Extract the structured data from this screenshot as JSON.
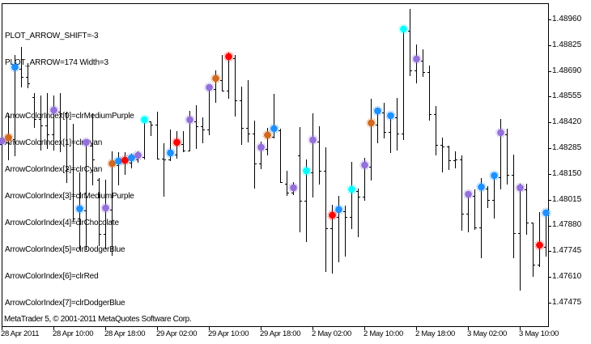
{
  "comment": {
    "shift": "PLOT_ARROW_SHIFT=-3",
    "arrow": "PLOT_ARROW=174 Width=3",
    "color_indices": [
      "ArrowColorIndex[0]=clrMediumPurple",
      "ArrowColorIndex[1]=clrCyan",
      "ArrowColorIndex[2]=clrCyan",
      "ArrowColorIndex[3]=clrMediumPurple",
      "ArrowColorIndex[4]=clrChocolate",
      "ArrowColorIndex[5]=clrDodgerBlue",
      "ArrowColorIndex[6]=clrRed",
      "ArrowColorIndex[7]=clrDodgerBlue"
    ]
  },
  "copyright": "MetaTrader 5, © 2001-2011 MetaQuotes Software Corp.",
  "axes": {
    "price_labels": [
      "1.48960",
      "1.48825",
      "1.48690",
      "1.48555",
      "1.48420",
      "1.48285",
      "1.48150",
      "1.48015",
      "1.47880",
      "1.47745",
      "1.47610",
      "1.47475"
    ],
    "time_labels": [
      "28 Apr 2011",
      "28 Apr 10:00",
      "28 Apr 18:00",
      "29 Apr 02:00",
      "29 Apr 10:00",
      "29 Apr 18:00",
      "2 May 02:00",
      "2 May 10:00",
      "2 May 18:00",
      "3 May 02:00",
      "3 May 10:00"
    ]
  },
  "colors": {
    "background": "#FFFFFF",
    "bars": "#000000",
    "MediumPurple": "#9370DB",
    "Cyan": "#00FFFF",
    "Chocolate": "#D2691E",
    "DodgerBlue": "#1E90FF",
    "Red": "#FF0000"
  },
  "chart_data": {
    "type": "bar",
    "bar_style": "ohlc",
    "title": "",
    "xlabel": "",
    "ylabel": "",
    "grid": false,
    "legend": null,
    "x_tick_labels": [
      "28 Apr 2011",
      "28 Apr 10:00",
      "28 Apr 18:00",
      "29 Apr 02:00",
      "29 Apr 10:00",
      "29 Apr 18:00",
      "2 May 02:00",
      "2 May 10:00",
      "2 May 18:00",
      "3 May 02:00",
      "3 May 10:00"
    ],
    "x_tick_bar_index": [
      0,
      8,
      16,
      24,
      32,
      40,
      48,
      56,
      64,
      72,
      80
    ],
    "y_ticks": [
      1.4896,
      1.48825,
      1.4869,
      1.48555,
      1.4842,
      1.48285,
      1.4815,
      1.48015,
      1.4788,
      1.47745,
      1.4761,
      1.47475
    ],
    "ylim": [
      1.4735,
      1.4905
    ],
    "y_axis_position": "right",
    "annotations": [
      "PLOT_ARROW_SHIFT=-3",
      "PLOT_ARROW=174 Width=3",
      "ArrowColorIndex[0]=clrMediumPurple",
      "ArrowColorIndex[1]=clrCyan",
      "ArrowColorIndex[2]=clrCyan",
      "ArrowColorIndex[3]=clrMediumPurple",
      "ArrowColorIndex[4]=clrChocolate",
      "ArrowColorIndex[5]=clrDodgerBlue",
      "ArrowColorIndex[6]=clrRed",
      "ArrowColorIndex[7]=clrDodgerBlue"
    ],
    "series": [
      {
        "name": "price",
        "fields": [
          "open",
          "high",
          "low",
          "close"
        ],
        "ohlc": [
          [
            1.48307,
            1.48426,
            1.4823,
            1.48315
          ],
          [
            1.48315,
            1.48468,
            1.48226,
            1.48332
          ],
          [
            1.48332,
            1.48774,
            1.48247,
            1.48701
          ],
          [
            1.48701,
            1.48816,
            1.48608,
            1.48659
          ],
          [
            1.48659,
            1.48731,
            1.48604,
            1.48625
          ],
          [
            1.48553,
            1.48574,
            1.48396,
            1.48438
          ],
          [
            1.48438,
            1.48561,
            1.48277,
            1.48404
          ],
          [
            1.48404,
            1.48574,
            1.48286,
            1.48358
          ],
          [
            1.48358,
            1.48561,
            1.48277,
            1.48476
          ],
          [
            1.48476,
            1.48574,
            1.48269,
            1.48468
          ],
          [
            1.48468,
            1.48476,
            1.48107,
            1.48175
          ],
          [
            1.48175,
            1.48413,
            1.47904,
            1.47916
          ],
          [
            1.47916,
            1.48158,
            1.47755,
            1.47959
          ],
          [
            1.47959,
            1.4832,
            1.47755,
            1.48307
          ],
          [
            1.48298,
            1.48468,
            1.48095,
            1.48226
          ],
          [
            1.4812,
            1.48129,
            1.47776,
            1.47836
          ],
          [
            1.47836,
            1.4812,
            1.47759,
            1.47963
          ],
          [
            1.47963,
            1.48269,
            1.47725,
            1.48196
          ],
          [
            1.48196,
            1.48264,
            1.48095,
            1.48209
          ],
          [
            1.48209,
            1.48264,
            1.4815,
            1.48213
          ],
          [
            1.48209,
            1.48256,
            1.48184,
            1.48226
          ],
          [
            1.48226,
            1.48269,
            1.48213,
            1.48239
          ],
          [
            1.48239,
            1.48434,
            1.4823,
            1.48426
          ],
          [
            1.48426,
            1.48426,
            1.48353,
            1.48409
          ],
          [
            1.48409,
            1.48476,
            1.4823,
            1.4823
          ],
          [
            1.4823,
            1.48311,
            1.48035,
            1.48226
          ],
          [
            1.48226,
            1.48383,
            1.48222,
            1.48252
          ],
          [
            1.48252,
            1.48375,
            1.48235,
            1.48307
          ],
          [
            1.48307,
            1.48375,
            1.48269,
            1.48273
          ],
          [
            1.48273,
            1.48481,
            1.48273,
            1.48426
          ],
          [
            1.48426,
            1.4851,
            1.48286,
            1.484
          ],
          [
            1.484,
            1.48447,
            1.48315,
            1.48383
          ],
          [
            1.48383,
            1.48604,
            1.48358,
            1.48595
          ],
          [
            1.48595,
            1.48693,
            1.48527,
            1.48642
          ],
          [
            1.48642,
            1.48774,
            1.48587,
            1.48587
          ],
          [
            1.48587,
            1.48786,
            1.48549,
            1.48757
          ],
          [
            1.48757,
            1.48774,
            1.48455,
            1.48536
          ],
          [
            1.48536,
            1.48608,
            1.48307,
            1.48392
          ],
          [
            1.48392,
            1.48642,
            1.4832,
            1.48362
          ],
          [
            1.48362,
            1.4843,
            1.48078,
            1.48205
          ],
          [
            1.48205,
            1.4832,
            1.4818,
            1.48281
          ],
          [
            1.48281,
            1.48392,
            1.48252,
            1.48345
          ],
          [
            1.48345,
            1.4857,
            1.48341,
            1.48379
          ],
          [
            1.48379,
            1.48387,
            1.48107,
            1.48107
          ],
          [
            1.48099,
            1.48167,
            1.48039,
            1.48052
          ],
          [
            1.48052,
            1.48107,
            1.48044,
            1.48069
          ],
          [
            1.48247,
            1.48396,
            1.47848,
            1.4801
          ],
          [
            1.4801,
            1.48226,
            1.47798,
            1.48158
          ],
          [
            1.48158,
            1.48468,
            1.48031,
            1.4832
          ],
          [
            1.4832,
            1.484,
            1.48099,
            1.48167
          ],
          [
            1.48167,
            1.4829,
            1.47641,
            1.47865
          ],
          [
            1.47865,
            1.47989,
            1.47632,
            1.47925
          ],
          [
            1.47925,
            1.48035,
            1.47691,
            1.47955
          ],
          [
            1.47955,
            1.47984,
            1.47721,
            1.47925
          ],
          [
            1.47925,
            1.48213,
            1.47865,
            1.48061
          ],
          [
            1.48061,
            1.48073,
            1.47823,
            1.48031
          ],
          [
            1.48031,
            1.48235,
            1.48014,
            1.48188
          ],
          [
            1.48188,
            1.48544,
            1.4812,
            1.48409
          ],
          [
            1.48409,
            1.48481,
            1.48315,
            1.48472
          ],
          [
            1.48472,
            1.48523,
            1.48341,
            1.4837
          ],
          [
            1.4837,
            1.48455,
            1.48264,
            1.48447
          ],
          [
            1.48447,
            1.48549,
            1.48277,
            1.48362
          ],
          [
            1.48362,
            1.48918,
            1.48332,
            1.48901
          ],
          [
            1.48901,
            1.49015,
            1.48667,
            1.48693
          ],
          [
            1.48693,
            1.48829,
            1.48629,
            1.48744
          ],
          [
            1.48744,
            1.48803,
            1.48663,
            1.48684
          ],
          [
            1.48684,
            1.48718,
            1.48434,
            1.48464
          ],
          [
            1.48464,
            1.48506,
            1.48252,
            1.48302
          ],
          [
            1.48302,
            1.48341,
            1.48163,
            1.48294
          ],
          [
            1.48294,
            1.48298,
            1.48175,
            1.48222
          ],
          [
            1.48222,
            1.48269,
            1.48184,
            1.48226
          ],
          [
            1.48226,
            1.48247,
            1.47857,
            1.47942
          ],
          [
            1.47942,
            1.48044,
            1.47848,
            1.48035
          ],
          [
            1.48035,
            1.48069,
            1.47861,
            1.4787
          ],
          [
            1.4787,
            1.48129,
            1.47713,
            1.48073
          ],
          [
            1.48073,
            1.48086,
            1.47976,
            1.48014
          ],
          [
            1.48014,
            1.48141,
            1.47921,
            1.48133
          ],
          [
            1.48133,
            1.48438,
            1.48073,
            1.48358
          ],
          [
            1.48358,
            1.48387,
            1.48099,
            1.48146
          ],
          [
            1.48146,
            1.48252,
            1.47713,
            1.4784
          ],
          [
            1.4784,
            1.48099,
            1.47543,
            1.48069
          ],
          [
            1.48069,
            1.48099,
            1.47836,
            1.47895
          ],
          [
            1.47895,
            1.47895,
            1.47615,
            1.47674
          ],
          [
            1.47674,
            1.4795,
            1.47666,
            1.47768
          ],
          [
            1.47768,
            1.47946,
            1.47721,
            1.47938
          ]
        ]
      }
    ],
    "arrows": [
      {
        "bar": 0,
        "color": "MediumPurple"
      },
      {
        "bar": 1,
        "color": "Chocolate"
      },
      {
        "bar": 2,
        "color": "DodgerBlue"
      },
      {
        "bar": 8,
        "color": "MediumPurple"
      },
      {
        "bar": 12,
        "color": "DodgerBlue"
      },
      {
        "bar": 13,
        "color": "MediumPurple"
      },
      {
        "bar": 16,
        "color": "MediumPurple"
      },
      {
        "bar": 17,
        "color": "Chocolate"
      },
      {
        "bar": 18,
        "color": "DodgerBlue"
      },
      {
        "bar": 19,
        "color": "Red"
      },
      {
        "bar": 20,
        "color": "DodgerBlue"
      },
      {
        "bar": 21,
        "color": "MediumPurple"
      },
      {
        "bar": 22,
        "color": "Cyan"
      },
      {
        "bar": 26,
        "color": "DodgerBlue"
      },
      {
        "bar": 27,
        "color": "Red"
      },
      {
        "bar": 29,
        "color": "MediumPurple"
      },
      {
        "bar": 32,
        "color": "MediumPurple"
      },
      {
        "bar": 33,
        "color": "Chocolate"
      },
      {
        "bar": 35,
        "color": "Red"
      },
      {
        "bar": 40,
        "color": "MediumPurple"
      },
      {
        "bar": 41,
        "color": "Chocolate"
      },
      {
        "bar": 42,
        "color": "DodgerBlue"
      },
      {
        "bar": 45,
        "color": "MediumPurple"
      },
      {
        "bar": 47,
        "color": "Cyan"
      },
      {
        "bar": 48,
        "color": "MediumPurple"
      },
      {
        "bar": 51,
        "color": "Red"
      },
      {
        "bar": 52,
        "color": "DodgerBlue"
      },
      {
        "bar": 54,
        "color": "Cyan"
      },
      {
        "bar": 56,
        "color": "MediumPurple"
      },
      {
        "bar": 57,
        "color": "Chocolate"
      },
      {
        "bar": 58,
        "color": "DodgerBlue"
      },
      {
        "bar": 60,
        "color": "DodgerBlue"
      },
      {
        "bar": 62,
        "color": "Cyan"
      },
      {
        "bar": 64,
        "color": "MediumPurple"
      },
      {
        "bar": 72,
        "color": "MediumPurple"
      },
      {
        "bar": 74,
        "color": "DodgerBlue"
      },
      {
        "bar": 76,
        "color": "DodgerBlue"
      },
      {
        "bar": 77,
        "color": "MediumPurple"
      },
      {
        "bar": 80,
        "color": "MediumPurple"
      },
      {
        "bar": 83,
        "color": "Red"
      },
      {
        "bar": 84,
        "color": "DodgerBlue"
      }
    ]
  }
}
